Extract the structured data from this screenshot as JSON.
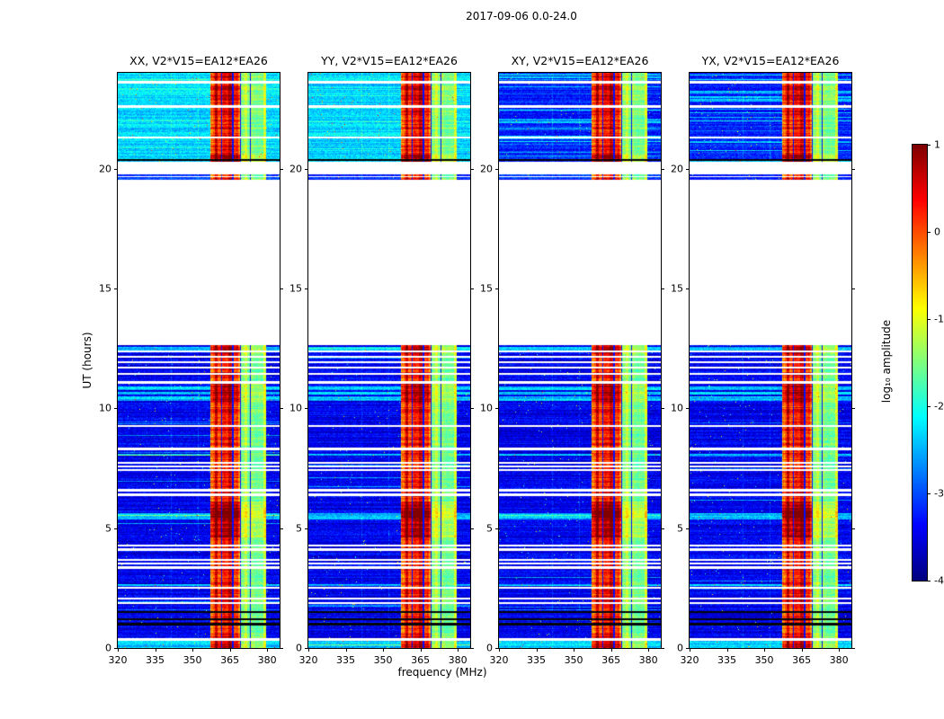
{
  "figure": {
    "title": "2017-09-06 0.0-24.0"
  },
  "chart_data": {
    "type": "heatmap",
    "title": "2017-09-06 0.0-24.0",
    "xlabel": "frequency (MHz)",
    "ylabel": "UT (hours)",
    "x_range": [
      320,
      385
    ],
    "y_range": [
      0,
      24
    ],
    "x_ticks": [
      320,
      335,
      350,
      365,
      380
    ],
    "y_ticks": [
      0,
      5,
      10,
      15,
      20
    ],
    "panels": [
      {
        "id": "XX",
        "label": "XX, V2*V15=EA12*EA26",
        "polarization": "co"
      },
      {
        "id": "YY",
        "label": "YY, V2*V15=EA12*EA26",
        "polarization": "co"
      },
      {
        "id": "XY",
        "label": "XY, V2*V15=EA12*EA26",
        "polarization": "cross"
      },
      {
        "id": "YX",
        "label": "YX, V2*V15=EA12*EA26",
        "polarization": "cross"
      }
    ],
    "colorbar": {
      "label": "log₁₀ amplitude",
      "colormap": "jet",
      "range": [
        -4,
        1
      ],
      "tick_values": [
        1,
        0,
        -1,
        -2,
        -3,
        -4
      ],
      "ticks": [
        "1",
        "0",
        "-1",
        "-2",
        "-3",
        "-4"
      ]
    },
    "content": {
      "segments": [
        {
          "start": 0.0,
          "end": 12.65,
          "kind": "data-lower"
        },
        {
          "start": 12.65,
          "end": 19.55,
          "kind": "gap"
        },
        {
          "start": 19.55,
          "end": 19.78,
          "kind": "data-strip"
        },
        {
          "start": 19.78,
          "end": 20.27,
          "kind": "gap"
        },
        {
          "start": 20.27,
          "end": 24.0,
          "kind": "data-upper"
        }
      ],
      "base_amplitude": {
        "lower": -3.45,
        "strip": -3.15,
        "upper_co": -2.3,
        "upper_cross": -3.25
      },
      "rfi_band_mhz": {
        "core": [
          357.2,
          369.3
        ],
        "outer": [
          369.3,
          379.5
        ],
        "notches": [
          361.7,
          366.2,
          369.3,
          373.2
        ]
      },
      "faint_columns_mhz": [
        341.6,
        352.4
      ],
      "white_lines_hours": [
        [
          0.35,
          0.06
        ],
        [
          1.88,
          0.05
        ],
        [
          2.06,
          0.04
        ],
        [
          2.5,
          0.04
        ],
        [
          3.36,
          0.05
        ],
        [
          3.52,
          0.04
        ],
        [
          3.66,
          0.04
        ],
        [
          4.11,
          0.05
        ],
        [
          4.26,
          0.04
        ],
        [
          6.39,
          0.05
        ],
        [
          6.58,
          0.05
        ],
        [
          7.44,
          0.04
        ],
        [
          7.59,
          0.04
        ],
        [
          7.74,
          0.04
        ],
        [
          8.3,
          0.05
        ],
        [
          9.27,
          0.04
        ],
        [
          11.07,
          0.05
        ],
        [
          11.44,
          0.05
        ],
        [
          11.7,
          0.05
        ],
        [
          11.93,
          0.05
        ],
        [
          12.15,
          0.05
        ],
        [
          12.37,
          0.05
        ],
        [
          19.66,
          0.025
        ],
        [
          21.3,
          0.045
        ],
        [
          22.6,
          0.045
        ],
        [
          23.6,
          0.045
        ]
      ],
      "black_lines_hours": [
        [
          1.0,
          0.05
        ],
        [
          1.2,
          0.035
        ],
        [
          1.5,
          0.04
        ],
        [
          20.36,
          0.03
        ]
      ],
      "bright_rows_hours": [
        [
          0.18,
          0.18
        ],
        [
          2.62,
          0.05
        ],
        [
          5.5,
          0.13
        ],
        [
          8.06,
          0.05
        ],
        [
          10.42,
          0.09
        ],
        [
          10.64,
          0.06
        ],
        [
          10.84,
          0.07
        ],
        [
          12.5,
          0.07
        ]
      ],
      "rfi_hotspots_hours": [
        [
          0,
          0.5,
          0.35
        ],
        [
          1.7,
          2.1,
          0.25
        ],
        [
          4.6,
          6.1,
          0.45
        ],
        [
          5.35,
          5.85,
          0.35
        ],
        [
          10.25,
          11.05,
          0.4
        ],
        [
          12.3,
          12.65,
          0.3
        ],
        [
          20.3,
          20.6,
          0.5
        ],
        [
          22.3,
          24,
          0.2
        ]
      ]
    }
  }
}
